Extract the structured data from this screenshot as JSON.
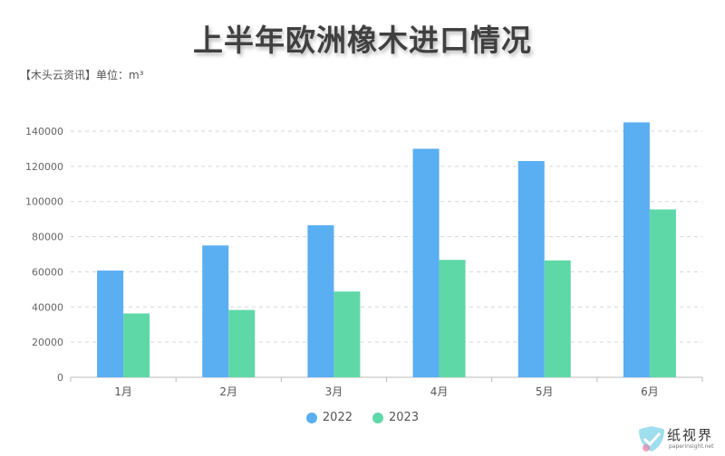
{
  "header": {
    "title": "上半年欧洲橡木进口情况",
    "source": "【木头云资讯】单位：m³"
  },
  "chart_data": {
    "type": "bar",
    "categories": [
      "1月",
      "2月",
      "3月",
      "4月",
      "5月",
      "6月"
    ],
    "series": [
      {
        "name": "2022",
        "values": [
          60700,
          75000,
          86500,
          130000,
          123000,
          145000
        ],
        "color": "#5aaef2"
      },
      {
        "name": "2023",
        "values": [
          36300,
          38300,
          48800,
          66800,
          66500,
          95500
        ],
        "color": "#5fd8a8"
      }
    ],
    "yticks": [
      "0",
      "20000",
      "40000",
      "60000",
      "80000",
      "100000",
      "120000",
      "140000"
    ],
    "ylim": [
      0,
      140000
    ],
    "grid": true,
    "legend_position": "bottom"
  },
  "watermark": {
    "text": "纸视界",
    "subtext": "paperinsight.net"
  }
}
